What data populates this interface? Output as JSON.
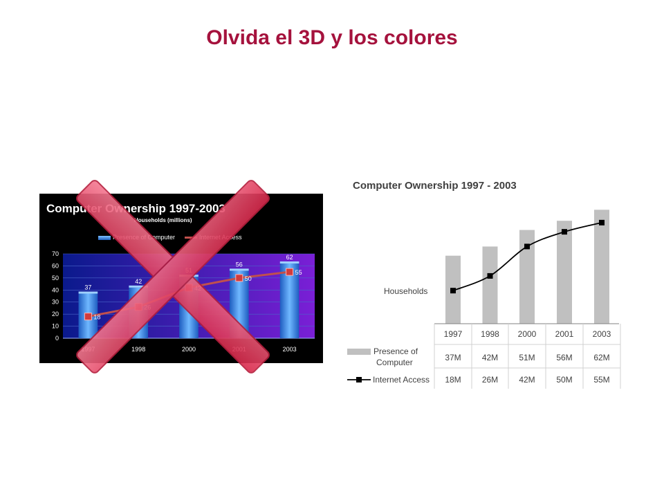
{
  "slide": {
    "title": "Olvida el 3D y los colores"
  },
  "colors": {
    "title": "#a5123d",
    "bar_3d": "#2f7fe0",
    "line_3d": "#c0504d",
    "bar_flat": "#c0c0c0",
    "line_flat": "#000000",
    "cross": "#e8415f"
  },
  "icons": {
    "cross": "red-x-cross-icon"
  },
  "chart_data": [
    {
      "type": "bar",
      "style": "3D, colored background (crossed out)",
      "title": "Computer Ownership  1997-2003",
      "subtitle": "Households (millions)",
      "categories": [
        "1997",
        "1998",
        "2000",
        "2001",
        "2003"
      ],
      "yticks": [
        "0",
        "10",
        "20",
        "30",
        "40",
        "50",
        "60",
        "70"
      ],
      "ylim": [
        0,
        70
      ],
      "grid": true,
      "legend": "top",
      "series": [
        {
          "name": "Presence of Computer",
          "type": "bar",
          "values": [
            37,
            42,
            51,
            56,
            62
          ]
        },
        {
          "name": "Internet Access",
          "type": "line",
          "values": [
            18,
            26,
            42,
            50,
            55
          ]
        }
      ]
    },
    {
      "type": "bar",
      "style": "flat grayscale with data table",
      "title": "Computer Ownership  1997 - 2003",
      "ylabel": "Households",
      "categories": [
        "1997",
        "1998",
        "2000",
        "2001",
        "2003"
      ],
      "ylim": [
        0,
        70
      ],
      "grid": false,
      "series": [
        {
          "name": "Presence of Computer",
          "type": "bar",
          "values": [
            37,
            42,
            51,
            56,
            62
          ],
          "labels": [
            "37M",
            "42M",
            "51M",
            "56M",
            "62M"
          ]
        },
        {
          "name": "Internet Access",
          "type": "line",
          "values": [
            18,
            26,
            42,
            50,
            55
          ],
          "labels": [
            "18M",
            "26M",
            "42M",
            "50M",
            "55M"
          ]
        }
      ]
    }
  ]
}
